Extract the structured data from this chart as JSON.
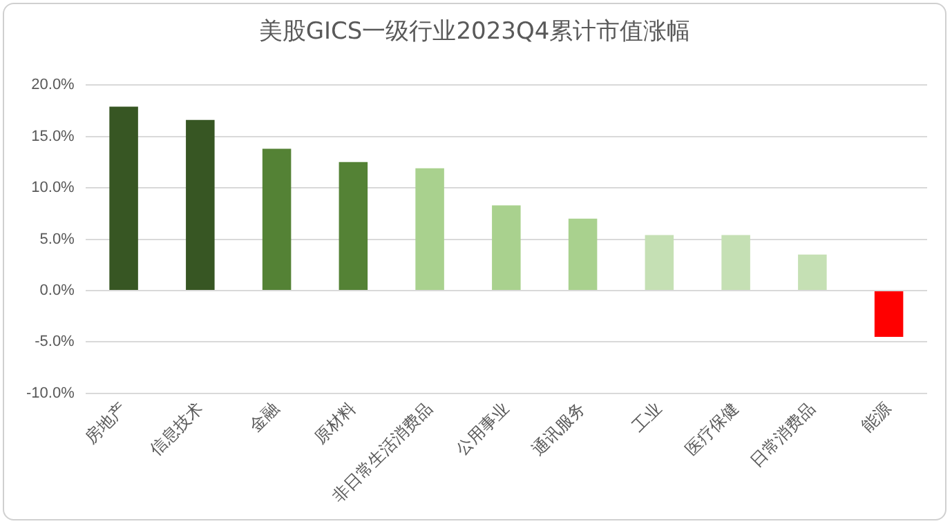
{
  "chart_data": {
    "type": "bar",
    "title": "美股GICS一级行业2023Q4累计市值涨幅",
    "categories": [
      "房地产",
      "信息技术",
      "金融",
      "原材料",
      "非日常生活消费品",
      "公用事业",
      "通讯服务",
      "工业",
      "医疗保健",
      "日常消费品",
      "能源"
    ],
    "values": [
      17.9,
      16.6,
      13.8,
      12.5,
      11.9,
      8.3,
      7.0,
      5.4,
      5.4,
      3.5,
      -4.5
    ],
    "colors": [
      "#375623",
      "#375623",
      "#548235",
      "#548235",
      "#a9d18e",
      "#a9d18e",
      "#a9d18e",
      "#c5e0b4",
      "#c5e0b4",
      "#c5e0b4",
      "#ff0000"
    ],
    "ylim": [
      -10,
      20
    ],
    "yticks": [
      {
        "value": -10,
        "label": "-10.0%"
      },
      {
        "value": -5,
        "label": "-5.0%"
      },
      {
        "value": 0,
        "label": "0.0%"
      },
      {
        "value": 5,
        "label": "5.0%"
      },
      {
        "value": 10,
        "label": "10.0%"
      },
      {
        "value": 15,
        "label": "15.0%"
      },
      {
        "value": 20,
        "label": "20.0%"
      }
    ],
    "grid": "y",
    "legend": false
  }
}
